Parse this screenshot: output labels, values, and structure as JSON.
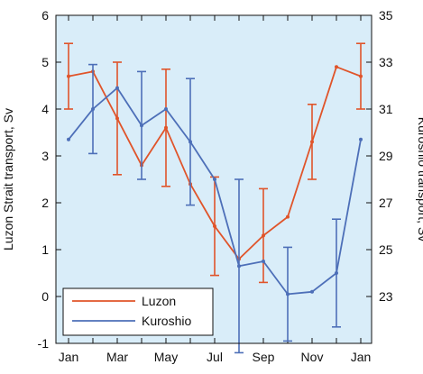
{
  "chart_data": {
    "type": "line",
    "x": [
      "Jan",
      "Feb",
      "Mar",
      "Apr",
      "May",
      "Jun",
      "Jul",
      "Aug",
      "Sep",
      "Oct",
      "Nov",
      "Dec",
      "Jan"
    ],
    "x_tick_labels": [
      "Jan",
      "Mar",
      "May",
      "Jul",
      "Sep",
      "Nov",
      "Jan"
    ],
    "left_axis": {
      "label": "Luzon Strait transport, Sv",
      "ylim": [
        -1,
        6
      ],
      "ticks": [
        -1,
        0,
        1,
        2,
        3,
        4,
        5,
        6
      ]
    },
    "right_axis": {
      "label": "Kuroshio transport, Sv",
      "ylim": [
        21,
        35
      ],
      "ticks": [
        23,
        25,
        27,
        29,
        31,
        33,
        35
      ]
    },
    "background_color": "#d9edf9",
    "grid": false,
    "legend": {
      "position": "bottom-left"
    },
    "series": [
      {
        "name": "Luzon",
        "axis": "left",
        "color": "#e0542a",
        "values": [
          4.7,
          4.8,
          3.8,
          2.8,
          3.6,
          2.4,
          1.5,
          0.8,
          1.3,
          1.7,
          3.3,
          4.9,
          4.7
        ],
        "error": [
          0.7,
          null,
          1.2,
          null,
          1.25,
          null,
          1.05,
          null,
          1.0,
          null,
          0.8,
          null,
          0.7
        ]
      },
      {
        "name": "Kuroshio",
        "axis": "right",
        "color": "#4d6fb8",
        "values": [
          29.7,
          31.0,
          31.9,
          30.3,
          31.0,
          29.6,
          28.0,
          24.3,
          24.5,
          23.1,
          23.2,
          24.0,
          29.7
        ],
        "error": [
          null,
          1.9,
          null,
          2.3,
          null,
          2.7,
          null,
          3.7,
          null,
          2.0,
          null,
          2.3,
          null
        ]
      }
    ]
  }
}
